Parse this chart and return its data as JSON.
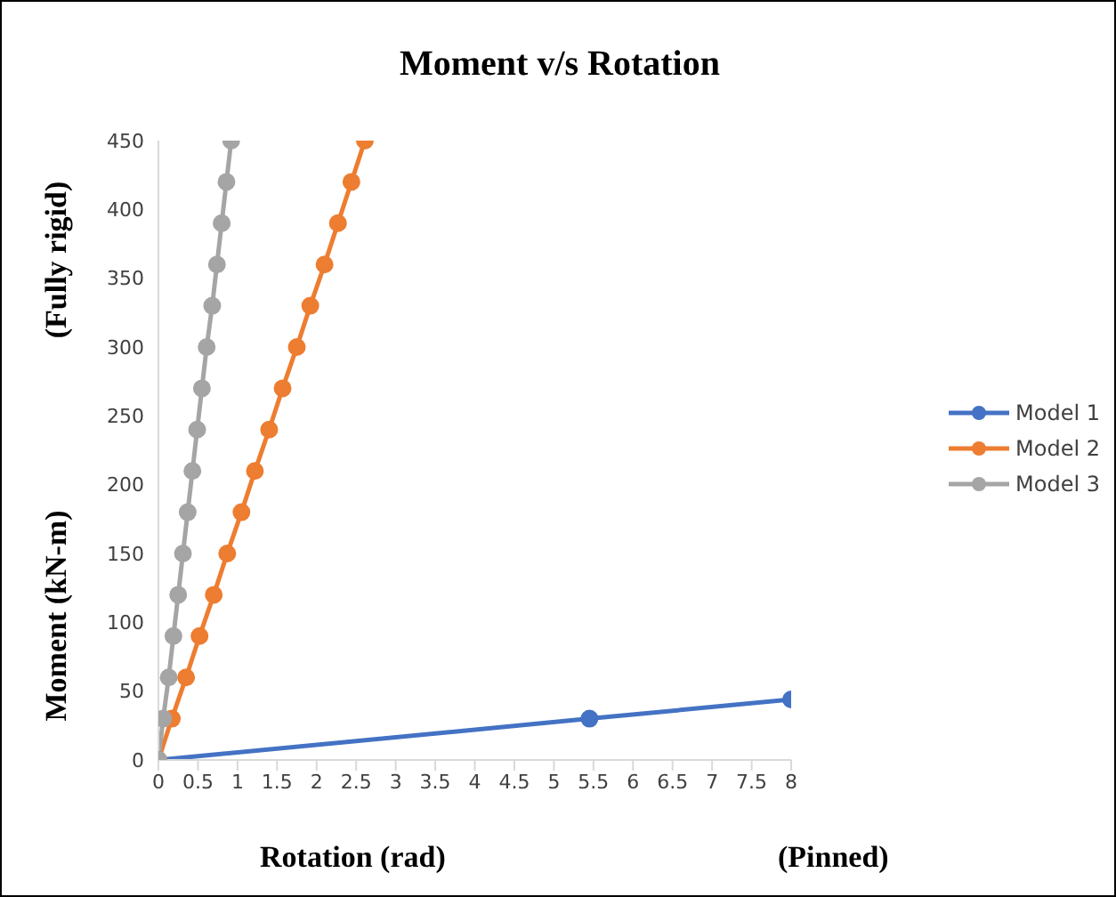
{
  "chart_data": {
    "type": "line",
    "title": "Moment v/s Rotation",
    "xlabel": "Rotation (rad)",
    "ylabel": "Moment (kN-m)",
    "annotations": [
      "(Pinned)",
      "(Fully rigid)"
    ],
    "xlim": [
      0,
      8
    ],
    "xticks": [
      0,
      0.5,
      1,
      1.5,
      2,
      2.5,
      3,
      3.5,
      4,
      4.5,
      5,
      5.5,
      6,
      6.5,
      7,
      7.5,
      8
    ],
    "ylim": [
      0,
      450
    ],
    "yticks": [
      0,
      50,
      100,
      150,
      200,
      250,
      300,
      350,
      400,
      450
    ],
    "grid": false,
    "legend": "right",
    "marker": "circle",
    "line_style": "solid",
    "series": [
      {
        "name": "Model 1",
        "color": "#4472c4",
        "x": [
          0,
          5.45,
          8
        ],
        "values": [
          0,
          30,
          44
        ]
      },
      {
        "name": "Model 2",
        "color": "#ed7d31",
        "x": [
          0,
          0.17,
          0.35,
          0.52,
          0.7,
          0.87,
          1.05,
          1.22,
          1.4,
          1.57,
          1.75,
          1.92,
          2.1,
          2.27,
          2.44,
          2.61
        ],
        "values": [
          0,
          30,
          60,
          90,
          120,
          150,
          180,
          210,
          240,
          270,
          300,
          330,
          360,
          390,
          420,
          450
        ]
      },
      {
        "name": "Model 3",
        "color": "#a5a5a5",
        "x": [
          0,
          0.06,
          0.13,
          0.19,
          0.25,
          0.31,
          0.37,
          0.43,
          0.49,
          0.55,
          0.61,
          0.68,
          0.74,
          0.8,
          0.86,
          0.92
        ],
        "values": [
          0,
          30,
          60,
          90,
          120,
          150,
          180,
          210,
          240,
          270,
          300,
          330,
          360,
          390,
          420,
          450
        ]
      }
    ]
  }
}
